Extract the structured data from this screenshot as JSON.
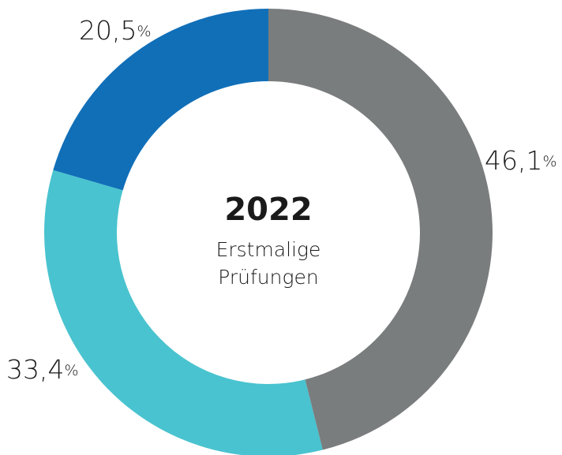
{
  "chart_data": {
    "type": "donut",
    "center_title": "2022",
    "center_subtitle": [
      "Erstmalige",
      "Prüfungen"
    ],
    "categories": [
      null,
      null,
      null
    ],
    "values": [
      46.1,
      33.4,
      20.5
    ],
    "value_labels": [
      "46,1%",
      "33,4%",
      "20,5%"
    ],
    "colors": [
      "#7a7d7e",
      "#49c3cf",
      "#116fb8"
    ]
  }
}
